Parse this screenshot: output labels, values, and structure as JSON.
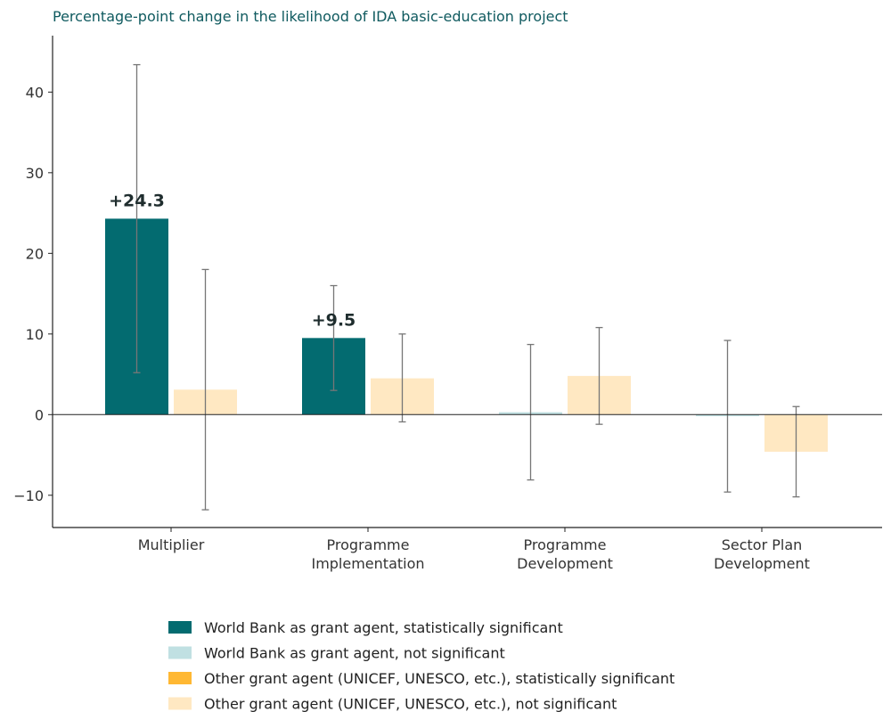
{
  "chart_data": {
    "type": "bar",
    "title": "Percentage-point change in the likelihood of IDA basic-education project",
    "xlabel": "",
    "ylabel": "",
    "ylim": [
      -14,
      47
    ],
    "yticks": [
      -10,
      0,
      10,
      20,
      30,
      40
    ],
    "ytick_labels": [
      "−10",
      "0",
      "10",
      "20",
      "30",
      "40"
    ],
    "categories": [
      [
        "Multiplier"
      ],
      [
        "Programme",
        "Implementation"
      ],
      [
        "Programme",
        "Development"
      ],
      [
        "Sector Plan",
        "Development"
      ]
    ],
    "series": [
      {
        "group": "World Bank as grant agent",
        "values": [
          24.3,
          9.5,
          0.3,
          -0.2
        ],
        "ci_low": [
          5.2,
          3.0,
          -8.1,
          -9.6
        ],
        "ci_high": [
          43.4,
          16.0,
          8.7,
          9.2
        ],
        "significant": [
          true,
          true,
          false,
          false
        ],
        "data_labels": [
          "+24.3",
          "+9.5",
          "",
          ""
        ]
      },
      {
        "group": "Other grant agent (UNICEF, UNESCO, etc.)",
        "values": [
          3.1,
          4.5,
          4.8,
          -4.6
        ],
        "ci_low": [
          -11.8,
          -0.9,
          -1.2,
          -10.2
        ],
        "ci_high": [
          18.0,
          10.0,
          10.8,
          1.0
        ],
        "significant": [
          false,
          false,
          false,
          false
        ],
        "data_labels": [
          "",
          "",
          "",
          ""
        ]
      }
    ],
    "colors": {
      "wb_sig": "#036b70",
      "wb_nonsig": "#c0e0e2",
      "other_sig": "#ffb833",
      "other_nonsig": "#ffe8c2",
      "errorbar": "#777777",
      "axis": "#222222"
    },
    "legend": {
      "position": "bottom",
      "entries": [
        {
          "label": "World Bank as grant agent, statistically significant",
          "color": "#036b70"
        },
        {
          "label": "World Bank as grant agent, not significant",
          "color": "#c0e0e2"
        },
        {
          "label": "Other grant agent (UNICEF, UNESCO, etc.), statistically significant",
          "color": "#ffb833"
        },
        {
          "label": "Other grant agent (UNICEF, UNESCO, etc.), not significant",
          "color": "#ffe8c2"
        }
      ]
    },
    "grid": false
  }
}
